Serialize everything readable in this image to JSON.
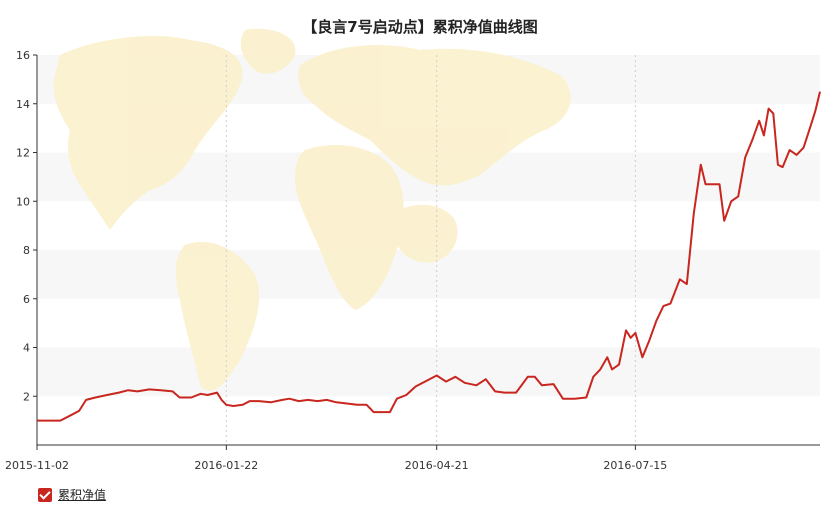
{
  "chart_data": {
    "type": "line",
    "title": "【良言7号启动点】累积净值曲线图",
    "xlabel": "",
    "ylabel": "",
    "x_tick_labels": [
      "2015-11-02",
      "2016-01-22",
      "2016-04-21",
      "2016-07-15"
    ],
    "x_tick_dates": [
      "2015-11-02",
      "2016-01-22",
      "2016-04-21",
      "2016-07-15"
    ],
    "x_range": [
      "2015-11-02",
      "2016-10-02"
    ],
    "ylim": [
      0,
      16
    ],
    "y_ticks": [
      2,
      4,
      6,
      8,
      10,
      12,
      14,
      16
    ],
    "grid": "horizontal bands with vertical dotted lines at x ticks",
    "legend": "bottom-left",
    "colors": {
      "line": "#c8261e",
      "band": "#f7f7f7",
      "axis": "#333333",
      "map": "#fbf1cf"
    },
    "series": [
      {
        "name": "累积净值",
        "points": [
          [
            "2015-11-02",
            1.0
          ],
          [
            "2015-11-12",
            1.0
          ],
          [
            "2015-11-16",
            1.2
          ],
          [
            "2015-11-20",
            1.4
          ],
          [
            "2015-11-23",
            1.85
          ],
          [
            "2015-11-27",
            1.95
          ],
          [
            "2015-12-02",
            2.05
          ],
          [
            "2015-12-07",
            2.15
          ],
          [
            "2015-12-11",
            2.25
          ],
          [
            "2015-12-15",
            2.2
          ],
          [
            "2015-12-20",
            2.28
          ],
          [
            "2015-12-25",
            2.25
          ],
          [
            "2015-12-30",
            2.2
          ],
          [
            "2016-01-02",
            1.95
          ],
          [
            "2016-01-07",
            1.95
          ],
          [
            "2016-01-11",
            2.1
          ],
          [
            "2016-01-14",
            2.05
          ],
          [
            "2016-01-18",
            2.15
          ],
          [
            "2016-01-20",
            1.85
          ],
          [
            "2016-01-22",
            1.65
          ],
          [
            "2016-01-25",
            1.6
          ],
          [
            "2016-01-29",
            1.65
          ],
          [
            "2016-02-01",
            1.8
          ],
          [
            "2016-02-05",
            1.8
          ],
          [
            "2016-02-10",
            1.75
          ],
          [
            "2016-02-15",
            1.85
          ],
          [
            "2016-02-18",
            1.9
          ],
          [
            "2016-02-22",
            1.8
          ],
          [
            "2016-02-26",
            1.85
          ],
          [
            "2016-03-01",
            1.8
          ],
          [
            "2016-03-05",
            1.85
          ],
          [
            "2016-03-09",
            1.75
          ],
          [
            "2016-03-14",
            1.7
          ],
          [
            "2016-03-18",
            1.65
          ],
          [
            "2016-03-22",
            1.65
          ],
          [
            "2016-03-25",
            1.35
          ],
          [
            "2016-03-29",
            1.35
          ],
          [
            "2016-04-01",
            1.35
          ],
          [
            "2016-04-04",
            1.9
          ],
          [
            "2016-04-08",
            2.05
          ],
          [
            "2016-04-12",
            2.4
          ],
          [
            "2016-04-16",
            2.6
          ],
          [
            "2016-04-21",
            2.85
          ],
          [
            "2016-04-25",
            2.6
          ],
          [
            "2016-04-29",
            2.8
          ],
          [
            "2016-05-03",
            2.55
          ],
          [
            "2016-05-08",
            2.45
          ],
          [
            "2016-05-12",
            2.7
          ],
          [
            "2016-05-16",
            2.2
          ],
          [
            "2016-05-20",
            2.15
          ],
          [
            "2016-05-25",
            2.15
          ],
          [
            "2016-05-30",
            2.8
          ],
          [
            "2016-06-02",
            2.8
          ],
          [
            "2016-06-05",
            2.45
          ],
          [
            "2016-06-10",
            2.5
          ],
          [
            "2016-06-14",
            1.9
          ],
          [
            "2016-06-19",
            1.9
          ],
          [
            "2016-06-24",
            1.95
          ],
          [
            "2016-06-27",
            2.8
          ],
          [
            "2016-06-30",
            3.1
          ],
          [
            "2016-07-03",
            3.6
          ],
          [
            "2016-07-05",
            3.1
          ],
          [
            "2016-07-08",
            3.3
          ],
          [
            "2016-07-11",
            4.7
          ],
          [
            "2016-07-13",
            4.4
          ],
          [
            "2016-07-15",
            4.6
          ],
          [
            "2016-07-18",
            3.6
          ],
          [
            "2016-07-21",
            4.3
          ],
          [
            "2016-07-24",
            5.1
          ],
          [
            "2016-07-27",
            5.7
          ],
          [
            "2016-07-30",
            5.8
          ],
          [
            "2016-08-03",
            6.8
          ],
          [
            "2016-08-06",
            6.6
          ],
          [
            "2016-08-09",
            9.5
          ],
          [
            "2016-08-12",
            11.5
          ],
          [
            "2016-08-14",
            10.7
          ],
          [
            "2016-08-20",
            10.7
          ],
          [
            "2016-08-22",
            9.2
          ],
          [
            "2016-08-25",
            10.0
          ],
          [
            "2016-08-28",
            10.2
          ],
          [
            "2016-08-31",
            11.8
          ],
          [
            "2016-09-03",
            12.5
          ],
          [
            "2016-09-06",
            13.3
          ],
          [
            "2016-09-08",
            12.7
          ],
          [
            "2016-09-10",
            13.8
          ],
          [
            "2016-09-12",
            13.6
          ],
          [
            "2016-09-14",
            11.5
          ],
          [
            "2016-09-16",
            11.4
          ],
          [
            "2016-09-19",
            12.1
          ],
          [
            "2016-09-22",
            11.9
          ],
          [
            "2016-09-25",
            12.2
          ],
          [
            "2016-09-28",
            13.1
          ],
          [
            "2016-09-30",
            13.7
          ],
          [
            "2016-10-02",
            14.5
          ]
        ]
      }
    ]
  }
}
